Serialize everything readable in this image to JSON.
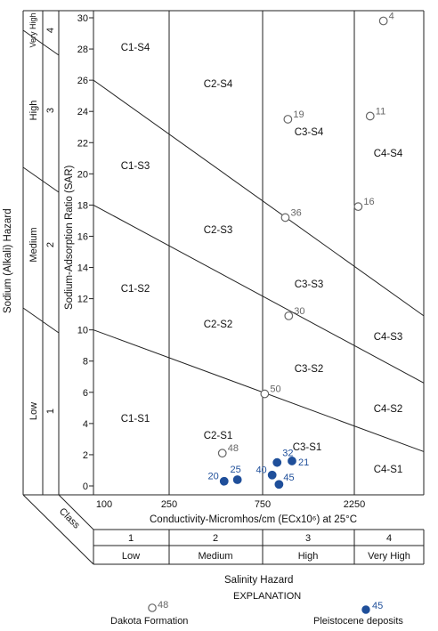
{
  "chart_data": {
    "type": "scatter",
    "ylabel": "Sodium-Adsorption Ratio (SAR)",
    "xlabel": "Conductivity-Micromhos/cm (ECx10⁶) at 25°C",
    "ylim": [
      0,
      31
    ],
    "y_ticks": [
      0,
      2,
      4,
      6,
      8,
      10,
      12,
      14,
      16,
      18,
      20,
      22,
      24,
      26,
      28,
      30
    ],
    "x_ticks": [
      "100",
      "250",
      "750",
      "2250"
    ],
    "x_scale": "log",
    "left_axis_label": "Sodium (Alkali) Hazard",
    "left_axis_classes": [
      {
        "class": "1",
        "name": "Low"
      },
      {
        "class": "2",
        "name": "Medium"
      },
      {
        "class": "3",
        "name": "High"
      },
      {
        "class": "4",
        "name": "Very High"
      }
    ],
    "corner_label": "Class",
    "bottom_axis_label": "Salinity Hazard",
    "salinity_classes": [
      {
        "class": "1",
        "name": "Low"
      },
      {
        "class": "2",
        "name": "Medium"
      },
      {
        "class": "3",
        "name": "High"
      },
      {
        "class": "4",
        "name": "Very High"
      }
    ],
    "regions": [
      "C1-S4",
      "C2-S4",
      "C3-S4",
      "C4-S4",
      "C1-S3",
      "C2-S3",
      "C3-S3",
      "C4-S3",
      "C1-S2",
      "C2-S2",
      "C3-S2",
      "C4-S2",
      "C1-S1",
      "C2-S1",
      "C3-S1",
      "C4-S1"
    ],
    "boundary_lines": [
      {
        "from": [
          100,
          10
        ],
        "to": [
          5000,
          2.2
        ]
      },
      {
        "from": [
          100,
          18
        ],
        "to": [
          5000,
          6.6
        ]
      },
      {
        "from": [
          100,
          26
        ],
        "to": [
          5000,
          10.9
        ]
      }
    ],
    "series": [
      {
        "name": "Dakota Formation",
        "marker": "open-circle",
        "points": [
          {
            "label": "4",
            "x": 3100,
            "y": 29.8
          },
          {
            "label": "19",
            "x": 1000,
            "y": 23.5
          },
          {
            "label": "11",
            "x": 2650,
            "y": 23.7
          },
          {
            "label": "36",
            "x": 970,
            "y": 17.2
          },
          {
            "label": "16",
            "x": 2300,
            "y": 17.9
          },
          {
            "label": "30",
            "x": 1010,
            "y": 10.9
          },
          {
            "label": "50",
            "x": 760,
            "y": 5.9
          },
          {
            "label": "48",
            "x": 460,
            "y": 2.1
          }
        ]
      },
      {
        "name": "Pleistocene deposits",
        "marker": "filled-circle",
        "points": [
          {
            "label": "20",
            "x": 470,
            "y": 0.3
          },
          {
            "label": "25",
            "x": 550,
            "y": 0.4
          },
          {
            "label": "40",
            "x": 830,
            "y": 0.7
          },
          {
            "label": "32",
            "x": 880,
            "y": 1.5
          },
          {
            "label": "21",
            "x": 1050,
            "y": 1.6
          },
          {
            "label": "45",
            "x": 900,
            "y": 0.1
          }
        ]
      }
    ],
    "legend_title": "EXPLANATION",
    "legend_items": [
      {
        "symbol": "open-circle",
        "number": "48",
        "name": "Dakota Formation"
      },
      {
        "symbol": "filled-circle",
        "number": "45",
        "name": "Pleistocene deposits"
      }
    ]
  },
  "colors": {
    "line": "#222222",
    "open_marker_stroke": "#666666",
    "filled_marker": "#1f4f9a",
    "filled_label": "#1f4f9a",
    "open_label": "#666666"
  }
}
